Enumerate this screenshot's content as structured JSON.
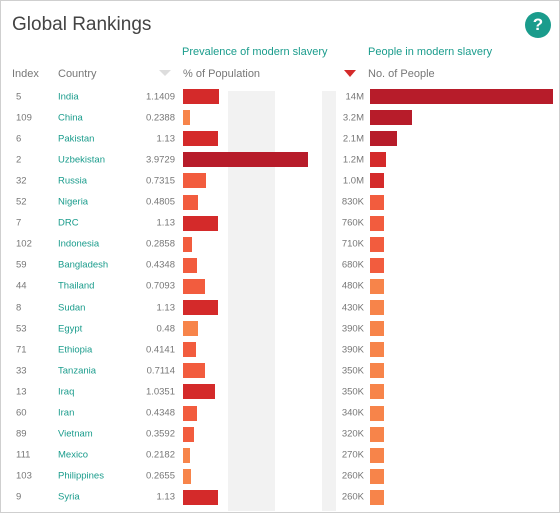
{
  "header": {
    "title": "Global Rankings",
    "help_label": "?"
  },
  "columns": {
    "index": "Index",
    "country": "Country",
    "prevalence_title": "Prevalence of modern slavery",
    "prevalence_sub": "% of Population",
    "people_title": "People in modern slavery",
    "people_sub": "No. of People"
  },
  "colors": {
    "accent": "#1a9c8c",
    "dark_red": "#b71c2a",
    "red": "#d42a2a",
    "orange_red": "#f25c3e",
    "orange": "#f7844a"
  },
  "rows": [
    {
      "index": "5",
      "country": "India",
      "pct": "1.1409",
      "pct_val": 1.1409,
      "pct_color": "#d42a2a",
      "people": "14M",
      "people_val": 14000000,
      "people_color": "#b71c2a"
    },
    {
      "index": "109",
      "country": "China",
      "pct": "0.2388",
      "pct_val": 0.2388,
      "pct_color": "#f7844a",
      "people": "3.2M",
      "people_val": 3200000,
      "people_color": "#b71c2a"
    },
    {
      "index": "6",
      "country": "Pakistan",
      "pct": "1.13",
      "pct_val": 1.13,
      "pct_color": "#d42a2a",
      "people": "2.1M",
      "people_val": 2100000,
      "people_color": "#b71c2a"
    },
    {
      "index": "2",
      "country": "Uzbekistan",
      "pct": "3.9729",
      "pct_val": 3.9729,
      "pct_color": "#b71c2a",
      "people": "1.2M",
      "people_val": 1200000,
      "people_color": "#d42a2a"
    },
    {
      "index": "32",
      "country": "Russia",
      "pct": "0.7315",
      "pct_val": 0.7315,
      "pct_color": "#f25c3e",
      "people": "1.0M",
      "people_val": 1000000,
      "people_color": "#d42a2a"
    },
    {
      "index": "52",
      "country": "Nigeria",
      "pct": "0.4805",
      "pct_val": 0.4805,
      "pct_color": "#f25c3e",
      "people": "830K",
      "people_val": 830000,
      "people_color": "#f25c3e"
    },
    {
      "index": "7",
      "country": "DRC",
      "pct": "1.13",
      "pct_val": 1.13,
      "pct_color": "#d42a2a",
      "people": "760K",
      "people_val": 760000,
      "people_color": "#f25c3e"
    },
    {
      "index": "102",
      "country": "Indonesia",
      "pct": "0.2858",
      "pct_val": 0.2858,
      "pct_color": "#f25c3e",
      "people": "710K",
      "people_val": 710000,
      "people_color": "#f25c3e"
    },
    {
      "index": "59",
      "country": "Bangladesh",
      "pct": "0.4348",
      "pct_val": 0.4348,
      "pct_color": "#f25c3e",
      "people": "680K",
      "people_val": 680000,
      "people_color": "#f25c3e"
    },
    {
      "index": "44",
      "country": "Thailand",
      "pct": "0.7093",
      "pct_val": 0.7093,
      "pct_color": "#f25c3e",
      "people": "480K",
      "people_val": 480000,
      "people_color": "#f7844a"
    },
    {
      "index": "8",
      "country": "Sudan",
      "pct": "1.13",
      "pct_val": 1.13,
      "pct_color": "#d42a2a",
      "people": "430K",
      "people_val": 430000,
      "people_color": "#f7844a"
    },
    {
      "index": "53",
      "country": "Egypt",
      "pct": "0.48",
      "pct_val": 0.48,
      "pct_color": "#f7844a",
      "people": "390K",
      "people_val": 390000,
      "people_color": "#f7844a"
    },
    {
      "index": "71",
      "country": "Ethiopia",
      "pct": "0.4141",
      "pct_val": 0.4141,
      "pct_color": "#f25c3e",
      "people": "390K",
      "people_val": 390000,
      "people_color": "#f7844a"
    },
    {
      "index": "33",
      "country": "Tanzania",
      "pct": "0.7114",
      "pct_val": 0.7114,
      "pct_color": "#f25c3e",
      "people": "350K",
      "people_val": 350000,
      "people_color": "#f7844a"
    },
    {
      "index": "13",
      "country": "Iraq",
      "pct": "1.0351",
      "pct_val": 1.0351,
      "pct_color": "#d42a2a",
      "people": "350K",
      "people_val": 350000,
      "people_color": "#f7844a"
    },
    {
      "index": "60",
      "country": "Iran",
      "pct": "0.4348",
      "pct_val": 0.4348,
      "pct_color": "#f25c3e",
      "people": "340K",
      "people_val": 340000,
      "people_color": "#f7844a"
    },
    {
      "index": "89",
      "country": "Vietnam",
      "pct": "0.3592",
      "pct_val": 0.3592,
      "pct_color": "#f25c3e",
      "people": "320K",
      "people_val": 320000,
      "people_color": "#f7844a"
    },
    {
      "index": "111",
      "country": "Mexico",
      "pct": "0.2182",
      "pct_val": 0.2182,
      "pct_color": "#f7844a",
      "people": "270K",
      "people_val": 270000,
      "people_color": "#f7844a"
    },
    {
      "index": "103",
      "country": "Philippines",
      "pct": "0.2655",
      "pct_val": 0.2655,
      "pct_color": "#f7844a",
      "people": "260K",
      "people_val": 260000,
      "people_color": "#f7844a"
    },
    {
      "index": "9",
      "country": "Syria",
      "pct": "1.13",
      "pct_val": 1.13,
      "pct_color": "#d42a2a",
      "people": "260K",
      "people_val": 260000,
      "people_color": "#f7844a"
    }
  ]
}
